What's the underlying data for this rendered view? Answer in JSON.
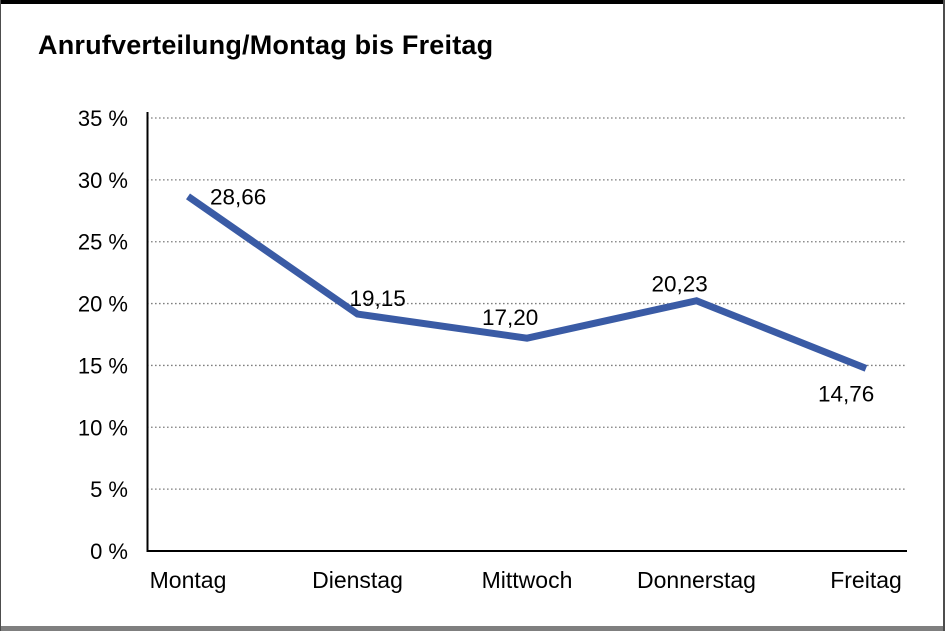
{
  "title": "Anrufverteilung/Montag bis Freitag",
  "colors": {
    "line": "#3A5BA5",
    "grid": "#7F7F7F",
    "axis": "#000000",
    "text": "#000000",
    "background": "#FFFFFF",
    "frame_top": "#000000",
    "frame_bottom": "#7F7F7F",
    "frame_left": "#4D4D4D",
    "frame_right": "#4D4D4D"
  },
  "chart_data": {
    "type": "line",
    "title": "Anrufverteilung/Montag bis Freitag",
    "categories": [
      "Montag",
      "Dienstag",
      "Mittwoch",
      "Donnerstag",
      "Freitag"
    ],
    "values": [
      28.66,
      19.15,
      17.2,
      20.23,
      14.76
    ],
    "data_labels": [
      "28,66",
      "19,15",
      "17,20",
      "20,23",
      "14,76"
    ],
    "xlabel": "",
    "ylabel": "",
    "ylim": [
      0,
      35
    ],
    "ytick_step": 5,
    "ytick_labels": [
      "0 %",
      "5 %",
      "10 %",
      "15 %",
      "20 %",
      "25 %",
      "30 %",
      "35 %"
    ],
    "grid": "horizontal-dotted",
    "legend": "none"
  }
}
